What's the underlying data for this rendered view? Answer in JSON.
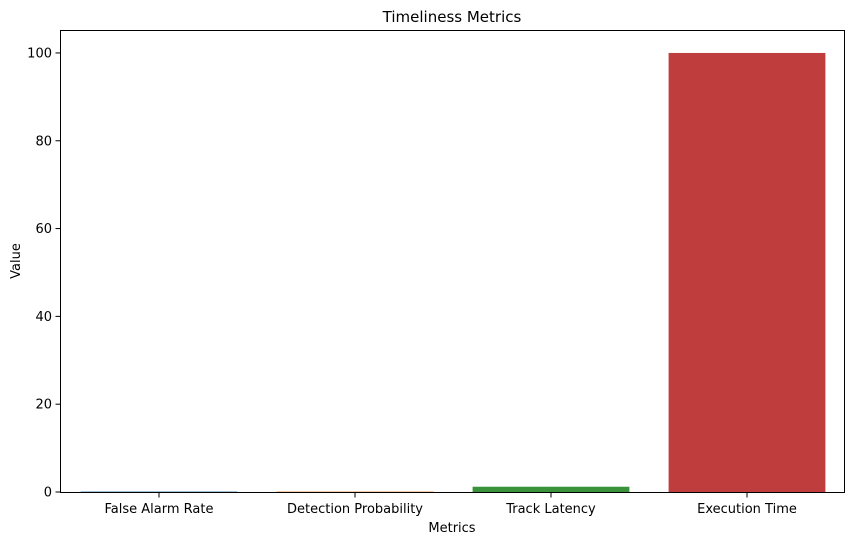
{
  "chart_data": {
    "type": "bar",
    "title": "Timeliness Metrics",
    "xlabel": "Metrics",
    "ylabel": "Value",
    "categories": [
      "False Alarm Rate",
      "Detection Probability",
      "Track Latency",
      "Execution Time"
    ],
    "values": [
      0.1,
      0.1,
      1.2,
      100
    ],
    "colors": [
      "#3274a1",
      "#e1812c",
      "#3a923a",
      "#c03d3e"
    ],
    "ylim": [
      0,
      105
    ],
    "yticks": [
      0,
      20,
      40,
      60,
      80,
      100
    ],
    "grid": false,
    "legend": "none"
  }
}
